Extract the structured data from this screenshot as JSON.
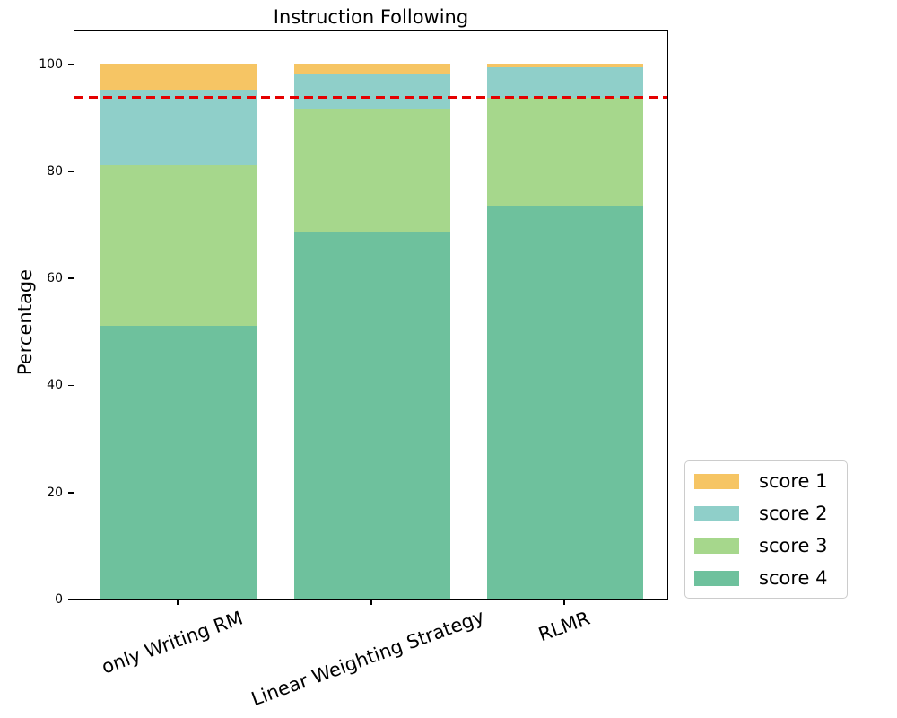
{
  "title": "Instruction Following",
  "ylabel": "Percentage",
  "chart_data": {
    "type": "bar",
    "subtype": "stacked",
    "title": "Instruction Following",
    "xlabel": "",
    "ylabel": "Percentage",
    "categories": [
      "only Writing RM",
      "Linear Weighting Strategy",
      "RLMR"
    ],
    "series": [
      {
        "name": "score 1",
        "color": "#F6C564",
        "values": [
          5.0,
          2.1,
          0.7
        ]
      },
      {
        "name": "score 2",
        "color": "#8FCFC9",
        "values": [
          14.0,
          6.4,
          5.8
        ]
      },
      {
        "name": "score 3",
        "color": "#A6D78C",
        "values": [
          30.0,
          22.9,
          20.1
        ]
      },
      {
        "name": "score 4",
        "color": "#6EC19D",
        "values": [
          51.0,
          68.6,
          73.4
        ]
      }
    ],
    "stack_order_bottom_to_top": [
      "score 4",
      "score 3",
      "score 2",
      "score 1"
    ],
    "yticks": [
      0,
      20,
      40,
      60,
      80,
      100
    ],
    "ylim": [
      0,
      106.5
    ],
    "grid": false,
    "reference_line": {
      "value": 94,
      "color": "#E50000",
      "style": "dashed"
    },
    "legend": {
      "position": "outside lower right"
    }
  }
}
